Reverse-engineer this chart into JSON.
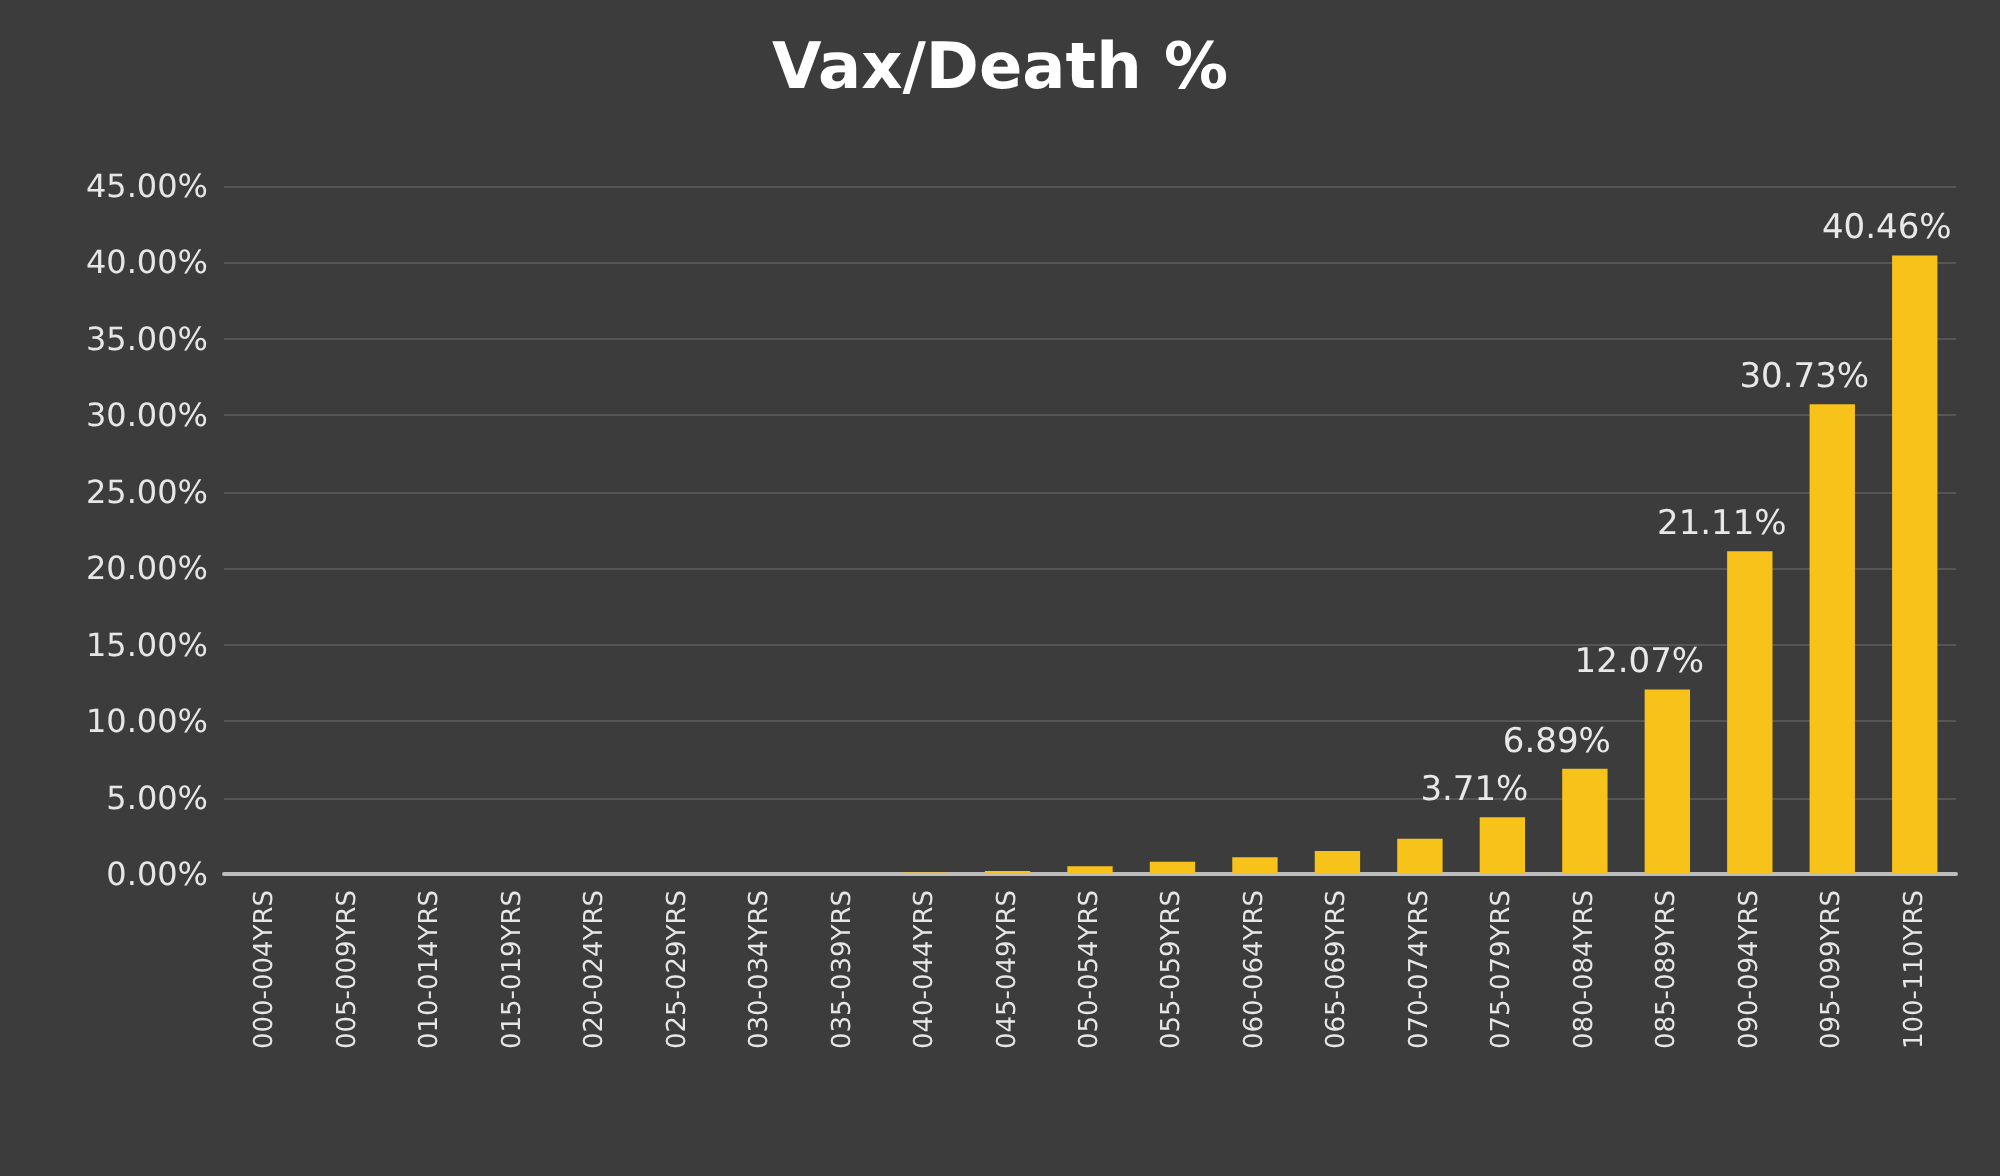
{
  "chart_data": {
    "type": "bar",
    "title": "Vax/Death %",
    "categories": [
      "000-004YRS",
      "005-009YRS",
      "010-014YRS",
      "015-019YRS",
      "020-024YRS",
      "025-029YRS",
      "030-034YRS",
      "035-039YRS",
      "040-044YRS",
      "045-049YRS",
      "050-054YRS",
      "055-059YRS",
      "060-064YRS",
      "065-069YRS",
      "070-074YRS",
      "075-079YRS",
      "080-084YRS",
      "085-089YRS",
      "090-094YRS",
      "095-099YRS",
      "100-110YRS"
    ],
    "values": [
      0,
      0,
      0,
      0,
      0,
      0,
      0,
      0,
      0.1,
      0.2,
      0.5,
      0.8,
      1.1,
      1.5,
      2.3,
      3.71,
      6.89,
      12.07,
      21.11,
      30.73,
      40.46
    ],
    "value_labels": [
      null,
      null,
      null,
      null,
      null,
      null,
      null,
      null,
      null,
      null,
      null,
      null,
      null,
      null,
      null,
      "3.71%",
      "6.89%",
      "12.07%",
      "21.11%",
      "30.73%",
      "40.46%"
    ],
    "color": "#f7c31a",
    "ylim": [
      0,
      45
    ],
    "yticks": [
      {
        "value": 0,
        "label": "0.00%"
      },
      {
        "value": 5,
        "label": "5.00%"
      },
      {
        "value": 10,
        "label": "10.00%"
      },
      {
        "value": 15,
        "label": "15.00%"
      },
      {
        "value": 20,
        "label": "20.00%"
      },
      {
        "value": 25,
        "label": "25.00%"
      },
      {
        "value": 30,
        "label": "30.00%"
      },
      {
        "value": 35,
        "label": "35.00%"
      },
      {
        "value": 40,
        "label": "40.00%"
      },
      {
        "value": 45,
        "label": "45.00%"
      }
    ],
    "grid": true
  }
}
